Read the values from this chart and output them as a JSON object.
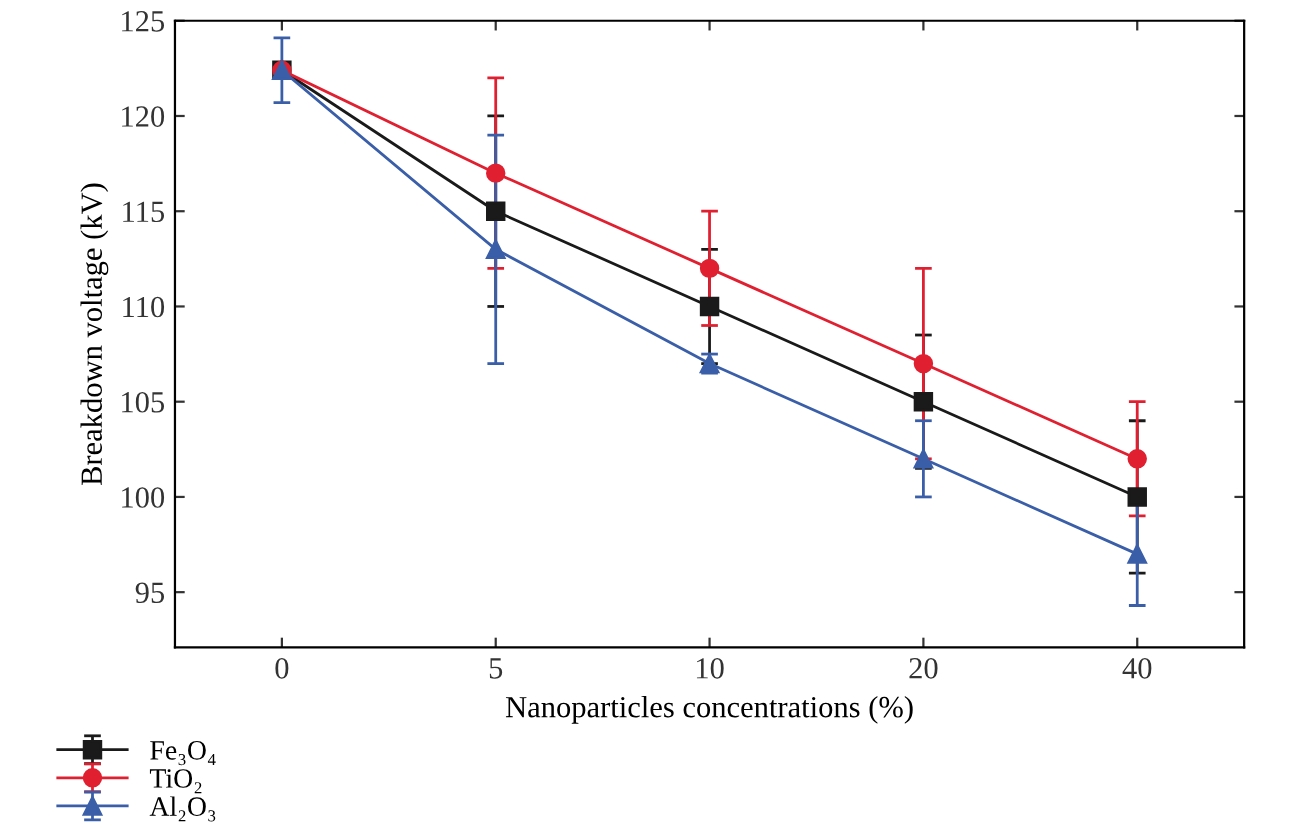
{
  "chart_data": {
    "type": "line",
    "xlabel": "Nanoparticles concentrations (%)",
    "ylabel": "Breakdown voltage (kV)",
    "categories": [
      "0",
      "5",
      "10",
      "20",
      "40"
    ],
    "series": [
      {
        "name": "Fe₃O₄",
        "color": "#1a1a1a",
        "marker": "square",
        "values": [
          122.4,
          115,
          110,
          105,
          100
        ],
        "errors": [
          null,
          5,
          3,
          3.5,
          4
        ]
      },
      {
        "name": "TiO₂",
        "color": "#e02030",
        "marker": "circle",
        "values": [
          122.4,
          117,
          112,
          107,
          102
        ],
        "errors": [
          null,
          5,
          3,
          5,
          3
        ]
      },
      {
        "name": "Al₂O₃",
        "color": "#3a5fa8",
        "marker": "triangle",
        "values": [
          122.4,
          113,
          107,
          102,
          97
        ],
        "errors": [
          1.7,
          6,
          0.5,
          2,
          2.7
        ]
      }
    ],
    "ylim": [
      92.1,
      125
    ],
    "yticks": [
      95,
      100,
      105,
      110,
      115,
      120,
      125
    ],
    "legend": "bottom left",
    "grid": false,
    "line_style": "solid"
  }
}
